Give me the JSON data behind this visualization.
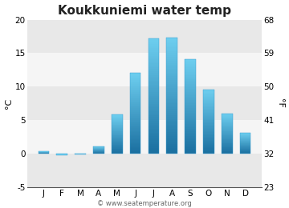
{
  "title": "Koukkuniemi water temp",
  "months": [
    "J",
    "F",
    "M",
    "A",
    "M",
    "J",
    "J",
    "A",
    "S",
    "O",
    "N",
    "D"
  ],
  "values": [
    0.3,
    -0.2,
    -0.1,
    1.1,
    5.8,
    12.0,
    17.2,
    17.3,
    14.1,
    9.6,
    6.0,
    3.1
  ],
  "ylim_c": [
    -5,
    20
  ],
  "ylim_f": [
    23,
    68
  ],
  "yticks_c": [
    -5,
    0,
    5,
    10,
    15,
    20
  ],
  "yticks_f": [
    23,
    32,
    41,
    50,
    59,
    68
  ],
  "ylabel_left": "°C",
  "ylabel_right": "°F",
  "bar_color_top": "#6ecff0",
  "bar_color_bottom": "#1a6fa0",
  "bg_color": "#ffffff",
  "plot_bg_color_dark": "#e8e8e8",
  "plot_bg_color_light": "#f5f5f5",
  "watermark": "© www.seatemperature.org",
  "title_fontsize": 11,
  "axis_fontsize": 7.5,
  "label_fontsize": 8,
  "watermark_fontsize": 6
}
